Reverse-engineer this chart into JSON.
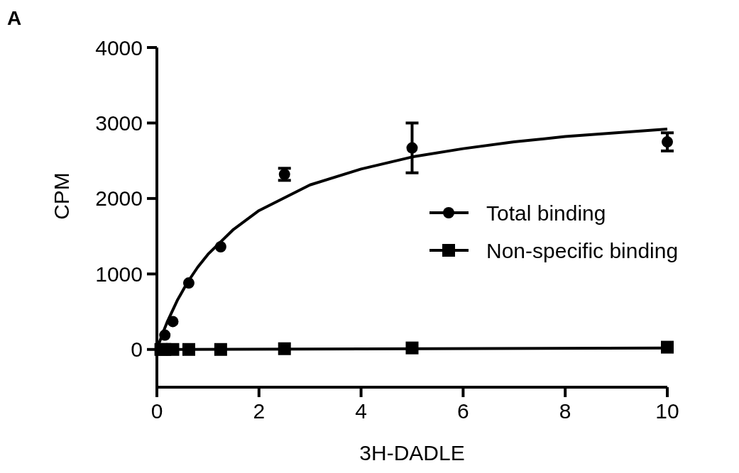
{
  "chart_data": {
    "type": "scatter",
    "xlabel": "3H-DADLE",
    "ylabel": "CPM",
    "annotations": [
      "A"
    ],
    "xlim": [
      0,
      10
    ],
    "xticks": [
      0,
      2,
      4,
      6,
      8,
      10
    ],
    "ylim": [
      -500,
      4000
    ],
    "yticks": [
      0,
      1000,
      2000,
      3000,
      4000
    ],
    "grid": false,
    "legend": "right",
    "series": [
      {
        "name": "Total binding",
        "marker": "circle",
        "color": "#000000",
        "x": [
          0.156,
          0.3125,
          0.625,
          1.25,
          2.5,
          5,
          10
        ],
        "values": [
          190,
          370,
          880,
          1360,
          2320,
          2670,
          2750
        ],
        "errors": [
          null,
          null,
          null,
          null,
          80,
          330,
          120
        ]
      },
      {
        "name": "Non-specific binding",
        "marker": "square",
        "color": "#000000",
        "x": [
          0.078,
          0.156,
          0.3125,
          0.625,
          1.25,
          2.5,
          5,
          10
        ],
        "values": [
          0,
          0,
          0,
          0,
          0,
          10,
          20,
          30
        ]
      },
      {
        "type": "line",
        "marker": "none",
        "color": "#000000",
        "x": [
          0,
          0.1,
          0.2,
          0.4,
          0.6,
          0.8,
          1,
          1.5,
          2,
          3,
          4,
          5,
          6,
          7,
          8,
          10
        ],
        "values": [
          0,
          190,
          360,
          650,
          890,
          1090,
          1260,
          1590,
          1840,
          2180,
          2390,
          2550,
          2660,
          2750,
          2820,
          2920
        ]
      },
      {
        "type": "line",
        "marker": "none",
        "color": "#000000",
        "x": [
          0,
          10
        ],
        "values": [
          0,
          20
        ]
      }
    ]
  }
}
